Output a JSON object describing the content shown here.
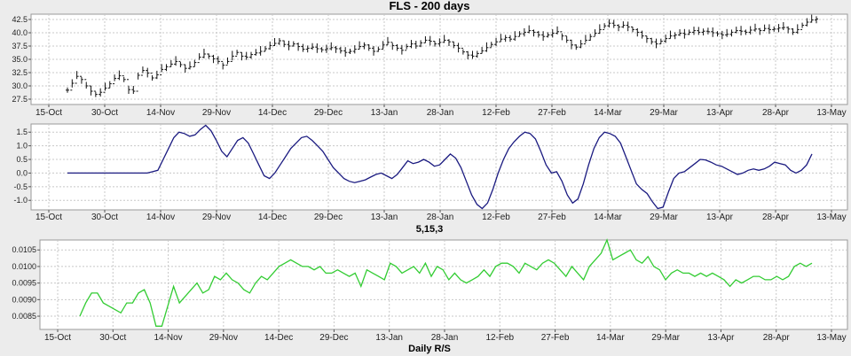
{
  "chart_data": [
    {
      "type": "ohlc",
      "title": "FLS - 200 days",
      "subtitle": "",
      "x_ticks": [
        "15-Oct",
        "30-Oct",
        "14-Nov",
        "29-Nov",
        "14-Dec",
        "29-Dec",
        "13-Jan",
        "28-Jan",
        "12-Feb",
        "27-Feb",
        "14-Mar",
        "29-Mar",
        "13-Apr",
        "28-Apr",
        "13-May"
      ],
      "y_ticks": [
        "27.5",
        "30.0",
        "32.5",
        "35.0",
        "37.5",
        "40.0",
        "42.5"
      ],
      "ylim": [
        26.5,
        43.5
      ],
      "grid": true,
      "series": [
        {
          "values": [
            29.2,
            30.5,
            31.8,
            31.2,
            30.0,
            29.0,
            28.4,
            28.8,
            29.6,
            30.4,
            31.4,
            31.9,
            31.2,
            29.3,
            29.0,
            32.0,
            32.9,
            32.4,
            31.5,
            32.1,
            33.1,
            33.6,
            34.1,
            34.6,
            34.0,
            33.3,
            33.6,
            34.4,
            35.4,
            36.0,
            35.6,
            35.1,
            34.6,
            33.9,
            34.6,
            35.6,
            36.3,
            35.6,
            35.4,
            35.9,
            36.2,
            36.5,
            37.0,
            37.6,
            38.0,
            38.5,
            37.8,
            37.5,
            37.9,
            37.4,
            36.9,
            37.1,
            37.3,
            37.0,
            36.8,
            37.0,
            37.2,
            37.0,
            36.6,
            36.3,
            36.5,
            36.9,
            37.4,
            37.7,
            37.1,
            36.5,
            36.9,
            37.7,
            38.2,
            37.6,
            37.1,
            36.7,
            37.4,
            37.9,
            37.5,
            38.1,
            38.6,
            38.4,
            37.9,
            38.2,
            38.6,
            38.3,
            37.6,
            37.1,
            36.4,
            35.8,
            35.6,
            36.1,
            36.6,
            37.2,
            37.8,
            38.3,
            38.8,
            39.1,
            38.8,
            39.3,
            39.8,
            40.1,
            40.4,
            40.1,
            39.6,
            39.3,
            39.6,
            39.9,
            40.2,
            39.4,
            38.6,
            37.7,
            37.3,
            37.9,
            38.6,
            39.3,
            39.9,
            40.6,
            41.3,
            41.8,
            41.4,
            41.1,
            41.4,
            41.1,
            40.6,
            40.1,
            39.4,
            38.9,
            38.3,
            37.9,
            38.4,
            38.9,
            39.4,
            39.6,
            39.9,
            39.7,
            40.1,
            40.4,
            40.1,
            40.3,
            40.2,
            40.0,
            39.8,
            39.6,
            39.7,
            40.1,
            40.4,
            40.3,
            40.1,
            40.5,
            40.7,
            40.4,
            40.8,
            40.6,
            40.7,
            40.9,
            41.0,
            40.7,
            40.1,
            40.6,
            41.4,
            42.0,
            42.4,
            42.6
          ]
        }
      ]
    },
    {
      "type": "line",
      "title": "5,15,3",
      "x_ticks": [
        "15-Oct",
        "30-Oct",
        "14-Nov",
        "29-Nov",
        "14-Dec",
        "29-Dec",
        "13-Jan",
        "28-Jan",
        "12-Feb",
        "27-Feb",
        "14-Mar",
        "29-Mar",
        "13-Apr",
        "28-Apr",
        "13-May"
      ],
      "y_ticks": [
        "-1.0",
        "-0.5",
        "0.0",
        "0.5",
        "1.0",
        "1.5"
      ],
      "ylim": [
        -1.35,
        1.8
      ],
      "grid": true,
      "color": "#1a1a80",
      "series": [
        {
          "values": [
            0,
            0,
            0,
            0,
            0,
            0,
            0,
            0,
            0,
            0,
            0,
            0,
            0,
            0,
            0,
            0,
            0.05,
            0.1,
            0.5,
            0.9,
            1.3,
            1.5,
            1.45,
            1.35,
            1.4,
            1.6,
            1.75,
            1.55,
            1.2,
            0.8,
            0.6,
            0.9,
            1.2,
            1.3,
            1.1,
            0.7,
            0.3,
            -0.1,
            -0.2,
            0,
            0.3,
            0.6,
            0.9,
            1.1,
            1.3,
            1.35,
            1.2,
            1.0,
            0.8,
            0.5,
            0.2,
            0,
            -0.2,
            -0.3,
            -0.35,
            -0.3,
            -0.25,
            -0.15,
            -0.05,
            0,
            -0.1,
            -0.2,
            -0.05,
            0.2,
            0.45,
            0.35,
            0.4,
            0.5,
            0.4,
            0.25,
            0.3,
            0.5,
            0.7,
            0.55,
            0.2,
            -0.3,
            -0.8,
            -1.15,
            -1.3,
            -1.1,
            -0.6,
            0.0,
            0.5,
            0.9,
            1.15,
            1.35,
            1.5,
            1.45,
            1.25,
            0.8,
            0.3,
            0,
            0.05,
            -0.3,
            -0.8,
            -1.1,
            -0.95,
            -0.4,
            0.3,
            0.9,
            1.3,
            1.5,
            1.45,
            1.35,
            1.1,
            0.6,
            0.1,
            -0.4,
            -0.6,
            -0.75,
            -1.05,
            -1.3,
            -1.25,
            -0.7,
            -0.2,
            0,
            0.05,
            0.2,
            0.35,
            0.5,
            0.48,
            0.4,
            0.3,
            0.25,
            0.15,
            0.05,
            -0.05,
            0,
            0.1,
            0.15,
            0.1,
            0.15,
            0.25,
            0.4,
            0.35,
            0.3,
            0.1,
            0,
            0.1,
            0.3,
            0.7
          ]
        }
      ]
    },
    {
      "type": "line",
      "title": "Daily R/S",
      "x_ticks": [
        "15-Oct",
        "30-Oct",
        "14-Nov",
        "29-Nov",
        "14-Dec",
        "29-Dec",
        "13-Jan",
        "28-Jan",
        "12-Feb",
        "27-Feb",
        "14-Mar",
        "29-Mar",
        "13-Apr",
        "28-Apr",
        "13-May"
      ],
      "y_ticks": [
        "0.0085",
        "0.0090",
        "0.0095",
        "0.0100",
        "0.0105"
      ],
      "ylim": [
        0.0081,
        0.0108
      ],
      "grid": true,
      "color": "#33cc33",
      "series": [
        {
          "values": [
            0.0085,
            0.0089,
            0.0092,
            0.0092,
            0.0089,
            0.0088,
            0.0087,
            0.0086,
            0.0089,
            0.0089,
            0.0092,
            0.0093,
            0.0089,
            0.0082,
            0.0082,
            0.0088,
            0.0094,
            0.0089,
            0.0091,
            0.0093,
            0.0095,
            0.0092,
            0.0093,
            0.0097,
            0.0096,
            0.0098,
            0.0096,
            0.0095,
            0.0093,
            0.0092,
            0.0095,
            0.0097,
            0.0096,
            0.0098,
            0.01,
            0.0101,
            0.0102,
            0.0101,
            0.01,
            0.01,
            0.0099,
            0.01,
            0.0098,
            0.0098,
            0.0099,
            0.0098,
            0.0097,
            0.0098,
            0.0094,
            0.0099,
            0.0098,
            0.0097,
            0.0096,
            0.0101,
            0.01,
            0.0098,
            0.0099,
            0.01,
            0.0098,
            0.0101,
            0.0097,
            0.01,
            0.0099,
            0.0096,
            0.0098,
            0.0096,
            0.0095,
            0.0096,
            0.0097,
            0.0099,
            0.0097,
            0.01,
            0.0101,
            0.0101,
            0.01,
            0.0098,
            0.0101,
            0.01,
            0.0099,
            0.0101,
            0.0102,
            0.0101,
            0.0099,
            0.0097,
            0.01,
            0.0098,
            0.0096,
            0.01,
            0.0102,
            0.0104,
            0.0108,
            0.0102,
            0.0103,
            0.0104,
            0.0105,
            0.0102,
            0.0101,
            0.0103,
            0.01,
            0.0099,
            0.0096,
            0.0098,
            0.0099,
            0.0098,
            0.0098,
            0.0097,
            0.0098,
            0.0097,
            0.0098,
            0.0097,
            0.0096,
            0.0094,
            0.0096,
            0.0095,
            0.0096,
            0.0097,
            0.0097,
            0.0096,
            0.0096,
            0.0097,
            0.0096,
            0.0097,
            0.01,
            0.0101,
            0.01,
            0.0101
          ]
        }
      ]
    }
  ]
}
